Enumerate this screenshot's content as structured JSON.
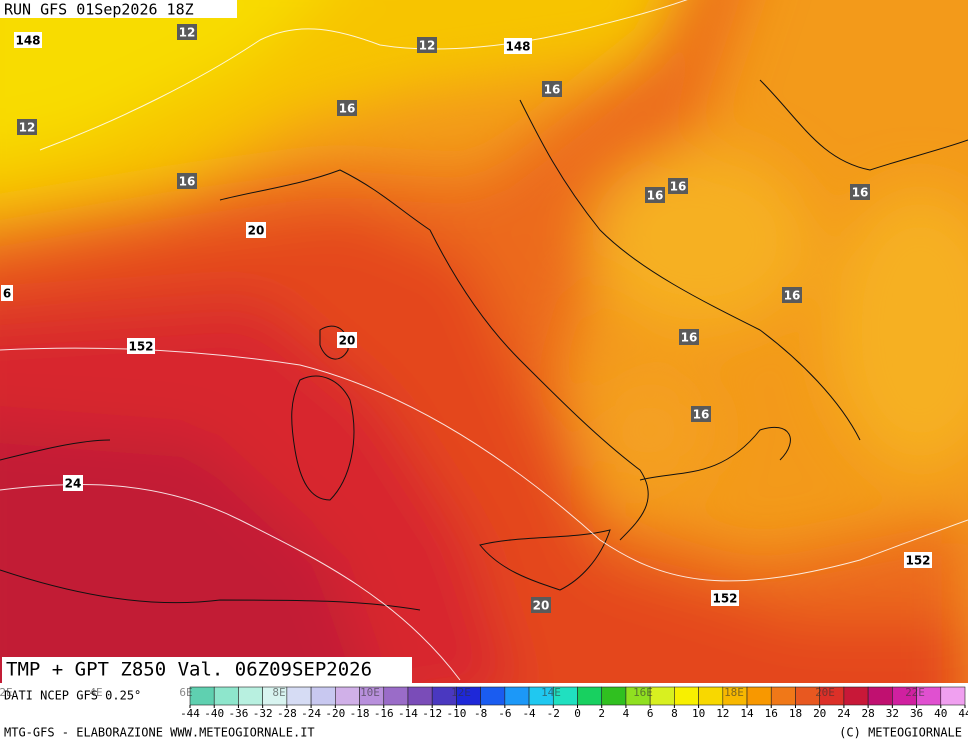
{
  "header": {
    "run": "RUN GFS 01Sep2026 18Z"
  },
  "map_labels": [
    "148",
    "12",
    "12",
    "148",
    "16",
    "16",
    "12",
    "16",
    "16",
    "16",
    "16",
    "20",
    "6",
    "16",
    "20",
    "16",
    "152",
    "16",
    "24",
    "152",
    "152",
    "20"
  ],
  "title": "TMP + GPT Z850 Val. 06Z09SEP2026",
  "source": "DATI NCEP GFS 0.25°",
  "longitude_labels": [
    "2E",
    "4E",
    "6E",
    "8E",
    "10E",
    "12E",
    "14E",
    "16E",
    "18E",
    "20E",
    "22E"
  ],
  "scale": {
    "ticks": [
      -44,
      -40,
      -36,
      -32,
      -28,
      -24,
      -20,
      -18,
      -16,
      -14,
      -12,
      -10,
      -8,
      -6,
      -4,
      -2,
      0,
      2,
      4,
      6,
      8,
      10,
      12,
      14,
      16,
      18,
      20,
      24,
      28,
      32,
      36,
      40,
      44
    ],
    "colors": [
      "#5fd0b0",
      "#8ee6cc",
      "#b8f0e0",
      "#d8f4f0",
      "#d6dcf4",
      "#c8c8f0",
      "#d0b0e8",
      "#b890dc",
      "#9a6cc8",
      "#7a4cb8",
      "#4a38c0",
      "#1e28d8",
      "#1a5cf0",
      "#1c98f8",
      "#20c8f0",
      "#20e0c0",
      "#18d060",
      "#30c020",
      "#90e020",
      "#d8f020",
      "#f8f000",
      "#f8d800",
      "#f8b800",
      "#f89800",
      "#f07818",
      "#e85820",
      "#dc3028",
      "#c81838",
      "#c01070",
      "#d020a0",
      "#e050d0",
      "#f0a0f0"
    ]
  },
  "footer": {
    "left": "MTG-GFS - ELABORAZIONE WWW.METEOGIORNALE.IT",
    "right": "(C) METEOGIORNALE"
  }
}
